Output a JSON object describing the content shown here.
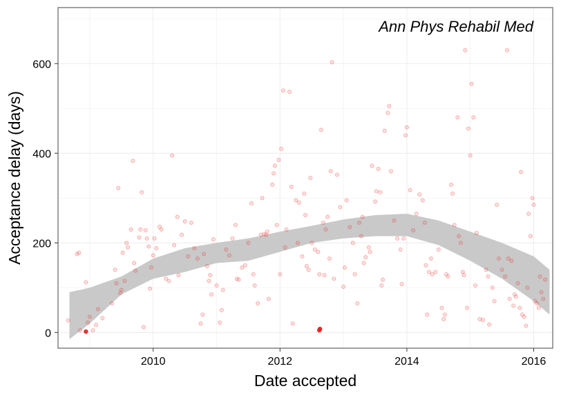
{
  "chart_data": {
    "type": "scatter",
    "title": "",
    "annotation": "Ann Phys Rehabil Med",
    "xlabel": "Date accepted",
    "ylabel": "Acceptance delay (days)",
    "xlim": [
      2008.5,
      2016.3
    ],
    "ylim": [
      -35,
      725
    ],
    "x_ticks": [
      2010,
      2012,
      2014,
      2016
    ],
    "x_tick_labels": [
      "2010",
      "2012",
      "2014",
      "2016"
    ],
    "y_ticks": [
      0,
      200,
      400,
      600
    ],
    "y_tick_labels": [
      "0",
      "200",
      "400",
      "600"
    ],
    "grid": true,
    "colors": {
      "point": "#e8211b",
      "band": "#c9c9c9",
      "grid": "#ececec",
      "border": "#808080"
    },
    "series": [
      {
        "points": [
          [
            2008.66,
            27
          ],
          [
            2008.8,
            175
          ],
          [
            2008.83,
            178
          ],
          [
            2008.85,
            5
          ],
          [
            2008.94,
            112
          ],
          [
            2008.97,
            22
          ],
          [
            2009.0,
            35
          ],
          [
            2009.05,
            5
          ],
          [
            2009.1,
            17
          ],
          [
            2009.13,
            52
          ],
          [
            2009.2,
            32
          ],
          [
            2009.35,
            65
          ],
          [
            2009.4,
            140
          ],
          [
            2009.42,
            110
          ],
          [
            2009.45,
            322
          ],
          [
            2009.48,
            88
          ],
          [
            2009.5,
            95
          ],
          [
            2009.55,
            115
          ],
          [
            2009.52,
            178
          ],
          [
            2009.58,
            200
          ],
          [
            2009.6,
            190
          ],
          [
            2009.65,
            230
          ],
          [
            2009.68,
            383
          ],
          [
            2009.7,
            155
          ],
          [
            2009.72,
            138
          ],
          [
            2009.78,
            212
          ],
          [
            2009.8,
            230
          ],
          [
            2009.82,
            313
          ],
          [
            2009.85,
            12
          ],
          [
            2009.88,
            228
          ],
          [
            2009.9,
            210
          ],
          [
            2009.93,
            192
          ],
          [
            2009.95,
            98
          ],
          [
            2009.97,
            145
          ],
          [
            2010.0,
            172
          ],
          [
            2010.02,
            210
          ],
          [
            2010.05,
            188
          ],
          [
            2010.1,
            236
          ],
          [
            2010.13,
            230
          ],
          [
            2010.2,
            120
          ],
          [
            2010.25,
            115
          ],
          [
            2010.3,
            395
          ],
          [
            2010.33,
            195
          ],
          [
            2010.38,
            258
          ],
          [
            2010.4,
            128
          ],
          [
            2010.45,
            218
          ],
          [
            2010.5,
            248
          ],
          [
            2010.55,
            170
          ],
          [
            2010.6,
            245
          ],
          [
            2010.65,
            188
          ],
          [
            2010.7,
            165
          ],
          [
            2010.75,
            20
          ],
          [
            2010.78,
            40
          ],
          [
            2010.8,
            175
          ],
          [
            2010.85,
            148
          ],
          [
            2010.88,
            115
          ],
          [
            2010.9,
            128
          ],
          [
            2010.92,
            85
          ],
          [
            2010.95,
            208
          ],
          [
            2011.0,
            105
          ],
          [
            2011.05,
            22
          ],
          [
            2011.08,
            50
          ],
          [
            2011.1,
            95
          ],
          [
            2011.15,
            185
          ],
          [
            2011.2,
            172
          ],
          [
            2011.25,
            210
          ],
          [
            2011.3,
            240
          ],
          [
            2011.32,
            120
          ],
          [
            2011.35,
            118
          ],
          [
            2011.4,
            145
          ],
          [
            2011.45,
            150
          ],
          [
            2011.5,
            200
          ],
          [
            2011.55,
            288
          ],
          [
            2011.58,
            130
          ],
          [
            2011.6,
            105
          ],
          [
            2011.65,
            65
          ],
          [
            2011.7,
            218
          ],
          [
            2011.72,
            300
          ],
          [
            2011.75,
            220
          ],
          [
            2011.78,
            218
          ],
          [
            2011.8,
            225
          ],
          [
            2011.82,
            75
          ],
          [
            2011.88,
            330
          ],
          [
            2011.9,
            355
          ],
          [
            2011.92,
            372
          ],
          [
            2011.95,
            240
          ],
          [
            2011.98,
            385
          ],
          [
            2012.0,
            130
          ],
          [
            2012.02,
            410
          ],
          [
            2012.05,
            540
          ],
          [
            2012.08,
            190
          ],
          [
            2012.1,
            230
          ],
          [
            2012.15,
            537
          ],
          [
            2012.18,
            325
          ],
          [
            2012.2,
            20
          ],
          [
            2012.25,
            295
          ],
          [
            2012.28,
            200
          ],
          [
            2012.3,
            290
          ],
          [
            2012.35,
            170
          ],
          [
            2012.38,
            310
          ],
          [
            2012.4,
            262
          ],
          [
            2012.42,
            148
          ],
          [
            2012.45,
            140
          ],
          [
            2012.48,
            345
          ],
          [
            2012.5,
            200
          ],
          [
            2012.55,
            185
          ],
          [
            2012.6,
            180
          ],
          [
            2012.62,
            130
          ],
          [
            2012.65,
            452
          ],
          [
            2012.68,
            245
          ],
          [
            2012.7,
            128
          ],
          [
            2012.72,
            230
          ],
          [
            2012.75,
            258
          ],
          [
            2012.78,
            165
          ],
          [
            2012.8,
            360
          ],
          [
            2012.82,
            603
          ],
          [
            2012.85,
            120
          ],
          [
            2012.9,
            352
          ],
          [
            2012.95,
            280
          ],
          [
            2013.0,
            102
          ],
          [
            2013.02,
            145
          ],
          [
            2013.05,
            295
          ],
          [
            2013.1,
            235
          ],
          [
            2013.15,
            200
          ],
          [
            2013.18,
            130
          ],
          [
            2013.22,
            65
          ],
          [
            2013.25,
            245
          ],
          [
            2013.28,
            215
          ],
          [
            2013.3,
            258
          ],
          [
            2013.32,
            155
          ],
          [
            2013.35,
            168
          ],
          [
            2013.4,
            190
          ],
          [
            2013.42,
            180
          ],
          [
            2013.45,
            372
          ],
          [
            2013.5,
            292
          ],
          [
            2013.52,
            315
          ],
          [
            2013.55,
            365
          ],
          [
            2013.58,
            313
          ],
          [
            2013.6,
            105
          ],
          [
            2013.62,
            118
          ],
          [
            2013.65,
            450
          ],
          [
            2013.7,
            490
          ],
          [
            2013.72,
            505
          ],
          [
            2013.75,
            360
          ],
          [
            2013.8,
            250
          ],
          [
            2013.85,
            210
          ],
          [
            2013.9,
            185
          ],
          [
            2013.92,
            108
          ],
          [
            2013.95,
            210
          ],
          [
            2013.98,
            440
          ],
          [
            2014.0,
            458
          ],
          [
            2014.05,
            318
          ],
          [
            2014.1,
            228
          ],
          [
            2014.15,
            265
          ],
          [
            2014.2,
            308
          ],
          [
            2014.25,
            295
          ],
          [
            2014.28,
            245
          ],
          [
            2014.3,
            150
          ],
          [
            2014.32,
            40
          ],
          [
            2014.35,
            135
          ],
          [
            2014.38,
            165
          ],
          [
            2014.4,
            130
          ],
          [
            2014.45,
            135
          ],
          [
            2014.5,
            185
          ],
          [
            2014.55,
            55
          ],
          [
            2014.58,
            30
          ],
          [
            2014.6,
            40
          ],
          [
            2014.62,
            130
          ],
          [
            2014.65,
            125
          ],
          [
            2014.7,
            330
          ],
          [
            2014.72,
            310
          ],
          [
            2014.75,
            240
          ],
          [
            2014.8,
            480
          ],
          [
            2014.82,
            215
          ],
          [
            2014.85,
            200
          ],
          [
            2014.88,
            135
          ],
          [
            2014.9,
            128
          ],
          [
            2014.92,
            630
          ],
          [
            2014.95,
            55
          ],
          [
            2014.97,
            455
          ],
          [
            2015.0,
            395
          ],
          [
            2015.02,
            555
          ],
          [
            2015.05,
            480
          ],
          [
            2015.08,
            105
          ],
          [
            2015.1,
            222
          ],
          [
            2015.15,
            30
          ],
          [
            2015.2,
            28
          ],
          [
            2015.25,
            140
          ],
          [
            2015.28,
            125
          ],
          [
            2015.3,
            18
          ],
          [
            2015.35,
            100
          ],
          [
            2015.38,
            70
          ],
          [
            2015.42,
            285
          ],
          [
            2015.45,
            165
          ],
          [
            2015.5,
            140
          ],
          [
            2015.55,
            125
          ],
          [
            2015.58,
            630
          ],
          [
            2015.6,
            165
          ],
          [
            2015.62,
            75
          ],
          [
            2015.65,
            160
          ],
          [
            2015.68,
            60
          ],
          [
            2015.7,
            85
          ],
          [
            2015.72,
            80
          ],
          [
            2015.75,
            110
          ],
          [
            2015.78,
            55
          ],
          [
            2015.8,
            358
          ],
          [
            2015.82,
            40
          ],
          [
            2015.85,
            35
          ],
          [
            2015.88,
            15
          ],
          [
            2015.9,
            100
          ],
          [
            2015.92,
            265
          ],
          [
            2015.95,
            215
          ],
          [
            2015.98,
            300
          ],
          [
            2016.0,
            285
          ],
          [
            2016.02,
            70
          ],
          [
            2016.05,
            65
          ],
          [
            2016.08,
            55
          ],
          [
            2016.1,
            125
          ],
          [
            2016.12,
            90
          ],
          [
            2016.15,
            75
          ],
          [
            2016.18,
            118
          ]
        ]
      }
    ],
    "highlighted_points": [
      [
        2008.94,
        2
      ],
      [
        2012.62,
        5
      ],
      [
        2012.63,
        8
      ]
    ],
    "smooth_band": {
      "x": [
        2008.68,
        2009.0,
        2009.5,
        2010.0,
        2010.5,
        2011.0,
        2011.5,
        2012.0,
        2012.5,
        2013.0,
        2013.5,
        2014.0,
        2014.5,
        2015.0,
        2015.5,
        2016.0,
        2016.25
      ],
      "lower": [
        -15,
        20,
        85,
        120,
        135,
        155,
        160,
        180,
        200,
        210,
        215,
        215,
        195,
        160,
        120,
        70,
        40
      ],
      "upper": [
        90,
        100,
        125,
        165,
        188,
        200,
        210,
        225,
        238,
        252,
        262,
        265,
        250,
        225,
        200,
        170,
        140
      ]
    }
  }
}
